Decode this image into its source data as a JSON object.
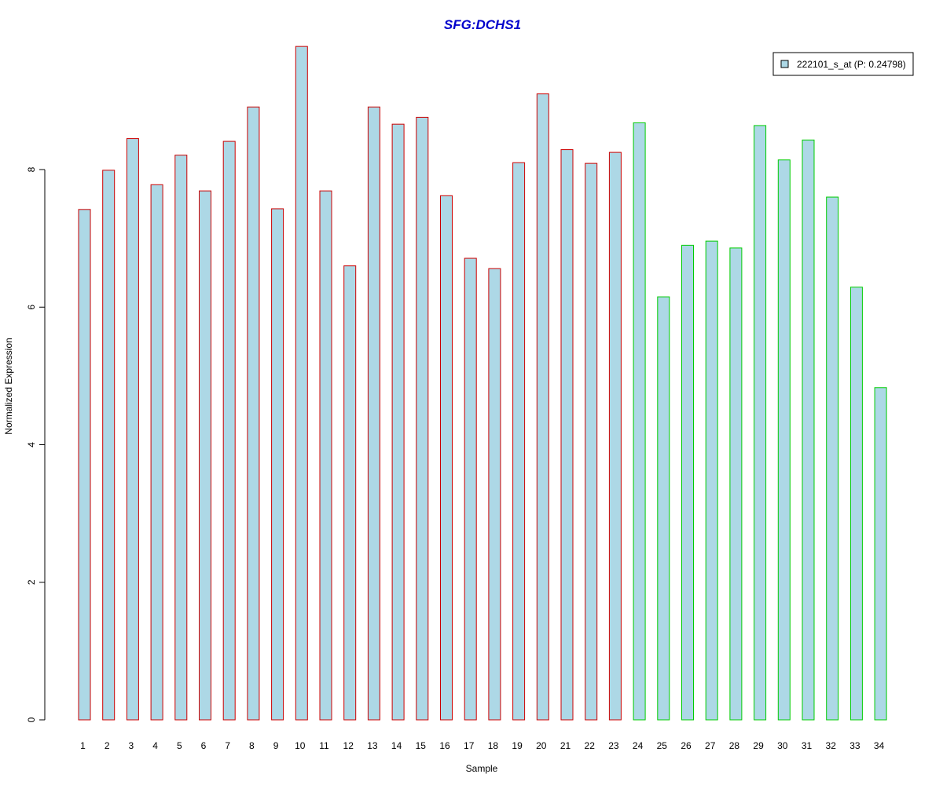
{
  "chart_data": {
    "type": "bar",
    "title": "SFG:DCHS1",
    "xlabel": "Sample",
    "ylabel": "Normalized Expression",
    "ylim": [
      0,
      9.8
    ],
    "yticks": [
      0,
      2,
      4,
      6,
      8
    ],
    "grid": false,
    "legend_position": "top-right",
    "fill_color": "#add8e6",
    "title_color": "#0000cc",
    "categories": [
      "1",
      "2",
      "3",
      "4",
      "5",
      "6",
      "7",
      "8",
      "9",
      "10",
      "11",
      "12",
      "13",
      "14",
      "15",
      "16",
      "17",
      "18",
      "19",
      "20",
      "21",
      "22",
      "23",
      "24",
      "25",
      "26",
      "27",
      "28",
      "29",
      "30",
      "31",
      "32",
      "33",
      "34"
    ],
    "series": [
      {
        "name": "222101_s_at (P: 0.24798)",
        "values": [
          7.42,
          7.99,
          8.45,
          7.78,
          8.21,
          7.69,
          8.41,
          8.91,
          7.43,
          9.79,
          7.69,
          6.6,
          8.91,
          8.66,
          8.76,
          7.62,
          6.71,
          6.56,
          8.1,
          9.1,
          8.29,
          8.09,
          8.25,
          8.68,
          6.15,
          6.9,
          6.96,
          6.86,
          8.64,
          8.14,
          8.43,
          7.6,
          6.29,
          4.83
        ]
      }
    ],
    "border_colors": [
      "#cc0000",
      "#cc0000",
      "#cc0000",
      "#cc0000",
      "#cc0000",
      "#cc0000",
      "#cc0000",
      "#cc0000",
      "#cc0000",
      "#cc0000",
      "#cc0000",
      "#cc0000",
      "#cc0000",
      "#cc0000",
      "#cc0000",
      "#cc0000",
      "#cc0000",
      "#cc0000",
      "#cc0000",
      "#cc0000",
      "#cc0000",
      "#cc0000",
      "#cc0000",
      "#00cc00",
      "#00cc00",
      "#00cc00",
      "#00cc00",
      "#00cc00",
      "#00cc00",
      "#00cc00",
      "#00cc00",
      "#00cc00",
      "#00cc00",
      "#00cc00"
    ]
  }
}
